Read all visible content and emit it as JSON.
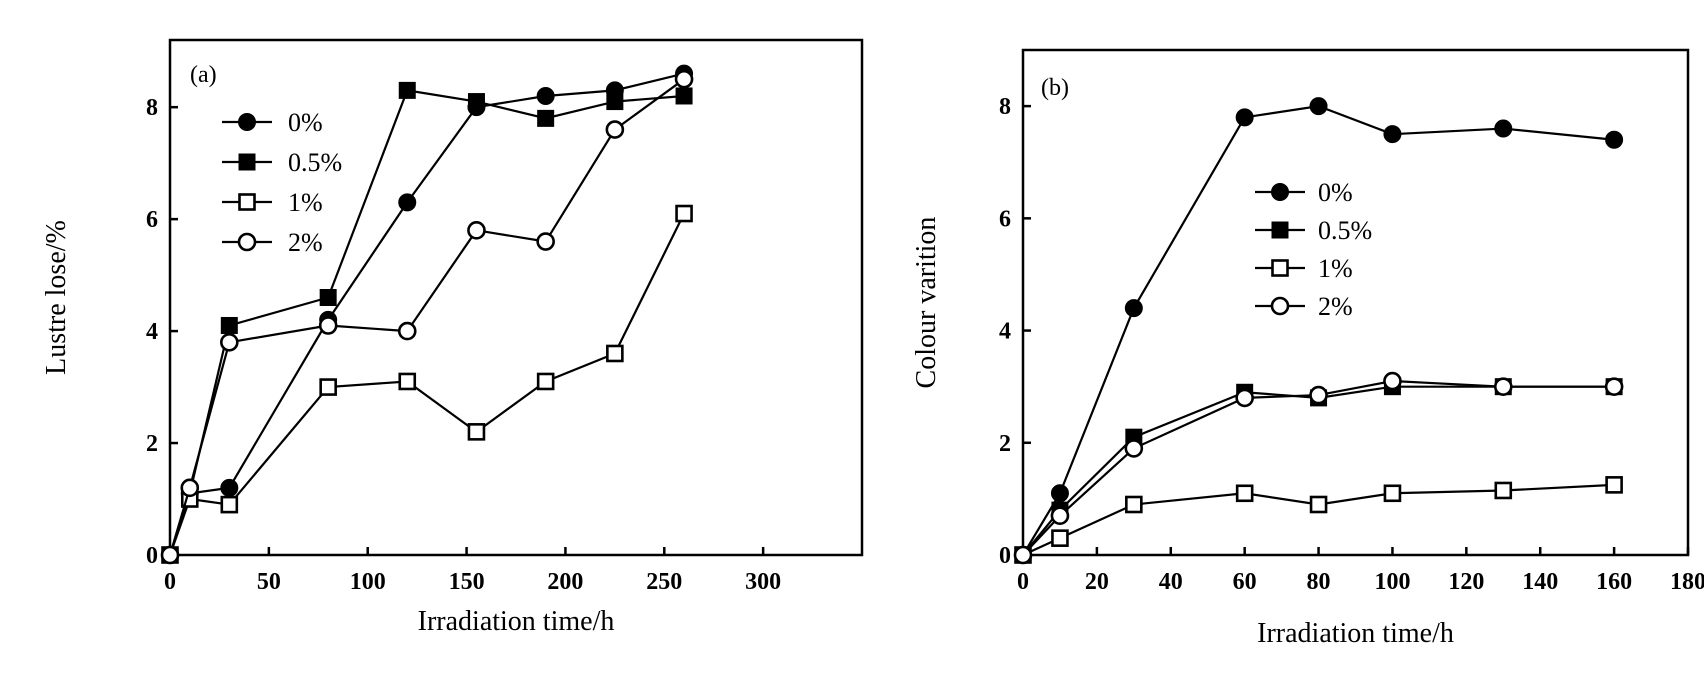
{
  "chart_data": [
    {
      "type": "line",
      "panel_label": "(a)",
      "title": "",
      "xlabel": "Irradiation time/h",
      "ylabel": "Lustre lose/%",
      "xlim": [
        0,
        350
      ],
      "ylim": [
        0,
        9.2
      ],
      "xticks": [
        0,
        50,
        100,
        150,
        200,
        250,
        300
      ],
      "xtick_labels": [
        "0",
        "50",
        "100",
        "150",
        "200",
        "250",
        "300"
      ],
      "yticks": [
        0,
        2,
        4,
        6,
        8
      ],
      "ytick_labels": [
        "0",
        "2",
        "4",
        "6",
        "8"
      ],
      "grid": false,
      "legend_position": "top-left",
      "series": [
        {
          "name": "0%",
          "marker": "filled-circle",
          "x": [
            0,
            10,
            30,
            80,
            120,
            155,
            190,
            225,
            260
          ],
          "y": [
            0,
            1.1,
            1.2,
            4.2,
            6.3,
            8.0,
            8.2,
            8.3,
            8.6
          ]
        },
        {
          "name": "0.5%",
          "marker": "filled-square",
          "x": [
            0,
            10,
            30,
            80,
            120,
            155,
            190,
            225,
            260
          ],
          "y": [
            0,
            1.1,
            4.1,
            4.6,
            8.3,
            8.1,
            7.8,
            8.1,
            8.2
          ]
        },
        {
          "name": "1%",
          "marker": "open-square",
          "x": [
            0,
            10,
            30,
            80,
            120,
            155,
            190,
            225,
            260
          ],
          "y": [
            0,
            1.0,
            0.9,
            3.0,
            3.1,
            2.2,
            3.1,
            3.6,
            6.1
          ]
        },
        {
          "name": "2%",
          "marker": "open-circle",
          "x": [
            0,
            10,
            30,
            80,
            120,
            155,
            190,
            225,
            260
          ],
          "y": [
            0,
            1.2,
            3.8,
            4.1,
            4.0,
            5.8,
            5.6,
            7.6,
            8.5
          ]
        }
      ]
    },
    {
      "type": "line",
      "panel_label": "(b)",
      "title": "",
      "xlabel": "Irradiation time/h",
      "ylabel": "Colour varition",
      "xlim": [
        0,
        180
      ],
      "ylim": [
        0,
        9
      ],
      "xticks": [
        0,
        20,
        40,
        60,
        80,
        100,
        120,
        140,
        160,
        180
      ],
      "xtick_labels": [
        "0",
        "20",
        "40",
        "60",
        "80",
        "100",
        "120",
        "140",
        "160",
        "180"
      ],
      "yticks": [
        0,
        2,
        4,
        6,
        8
      ],
      "ytick_labels": [
        "0",
        "2",
        "4",
        "6",
        "8"
      ],
      "grid": false,
      "legend_position": "center",
      "series": [
        {
          "name": "0%",
          "marker": "filled-circle",
          "x": [
            0,
            10,
            30,
            60,
            80,
            100,
            130,
            160
          ],
          "y": [
            0,
            1.1,
            4.4,
            7.8,
            8.0,
            7.5,
            7.6,
            7.4
          ]
        },
        {
          "name": "0.5%",
          "marker": "filled-square",
          "x": [
            0,
            10,
            30,
            60,
            80,
            100,
            130,
            160
          ],
          "y": [
            0,
            0.8,
            2.1,
            2.9,
            2.8,
            3.0,
            3.0,
            3.0
          ]
        },
        {
          "name": "1%",
          "marker": "open-square",
          "x": [
            0,
            10,
            30,
            60,
            80,
            100,
            130,
            160
          ],
          "y": [
            0,
            0.3,
            0.9,
            1.1,
            0.9,
            1.1,
            1.15,
            1.25
          ]
        },
        {
          "name": "2%",
          "marker": "open-circle",
          "x": [
            0,
            10,
            30,
            60,
            80,
            100,
            130,
            160
          ],
          "y": [
            0,
            0.7,
            1.9,
            2.8,
            2.85,
            3.1,
            3.0,
            3.0
          ]
        }
      ]
    }
  ]
}
